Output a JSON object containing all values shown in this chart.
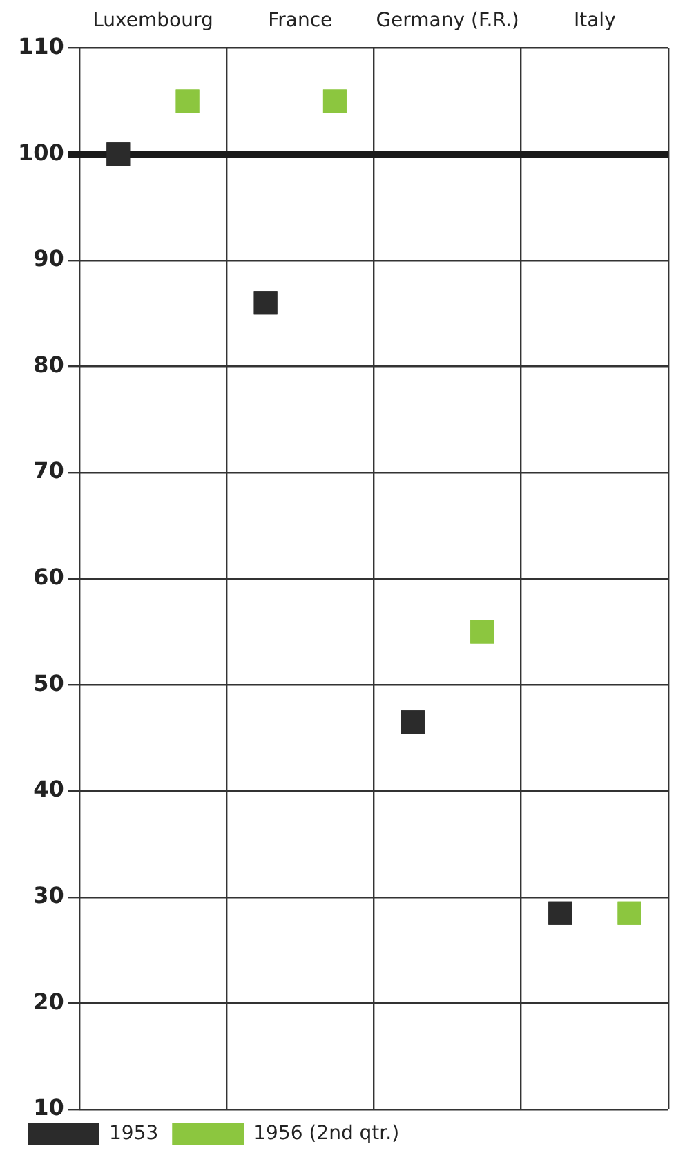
{
  "chart_data": {
    "type": "scatter",
    "categories": [
      "Luxembourg",
      "France",
      "Germany (F.R.)",
      "Italy"
    ],
    "series": [
      {
        "name": "1953",
        "color": "#2b2b2b",
        "values": [
          100,
          86,
          46.5,
          28.5
        ]
      },
      {
        "name": "1956 (2nd qtr.)",
        "color": "#8cc63f",
        "values": [
          105,
          105,
          55,
          28.5
        ]
      }
    ],
    "ylim": [
      10,
      110
    ],
    "yticks": [
      10,
      20,
      30,
      40,
      50,
      60,
      70,
      80,
      90,
      100,
      110
    ],
    "grid": true,
    "marker": "square",
    "legend": "bottom left",
    "ref_lines": [
      {
        "axis": "y",
        "value": 100,
        "color": "#1a1a1a"
      }
    ]
  }
}
